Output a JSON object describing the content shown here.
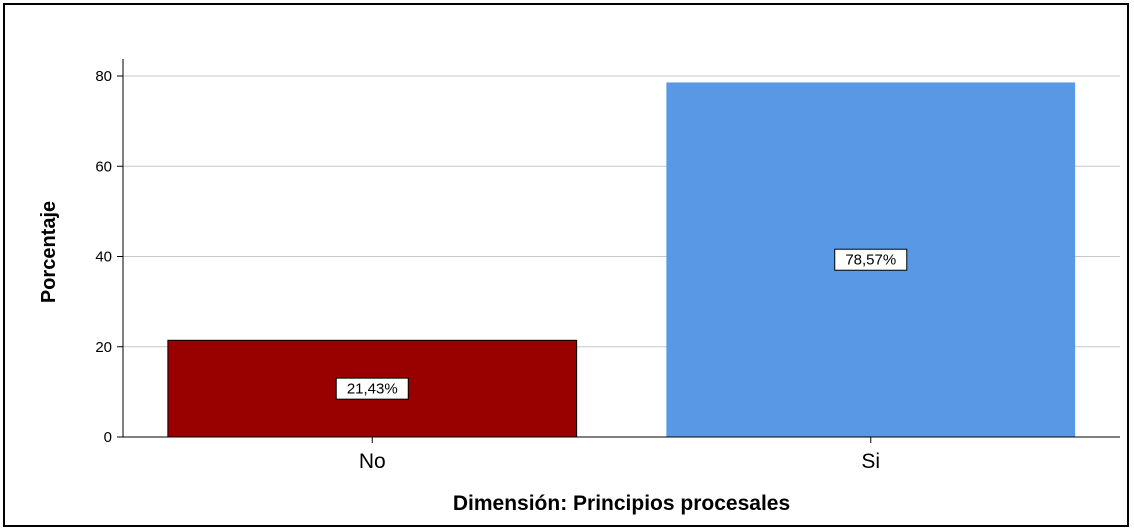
{
  "chart_data": {
    "type": "bar",
    "categories": [
      "No",
      "Si"
    ],
    "values": [
      21.43,
      78.57
    ],
    "data_labels": [
      "21,43%",
      "78,57%"
    ],
    "colors": [
      "#990000",
      "#5898E5"
    ],
    "title": "",
    "xlabel": "Dimensión: Principios procesales",
    "ylabel": "Porcentaje",
    "ylim": [
      0,
      80
    ],
    "yticks": [
      0,
      20,
      40,
      60,
      80
    ],
    "grid": true,
    "legend": "none"
  }
}
